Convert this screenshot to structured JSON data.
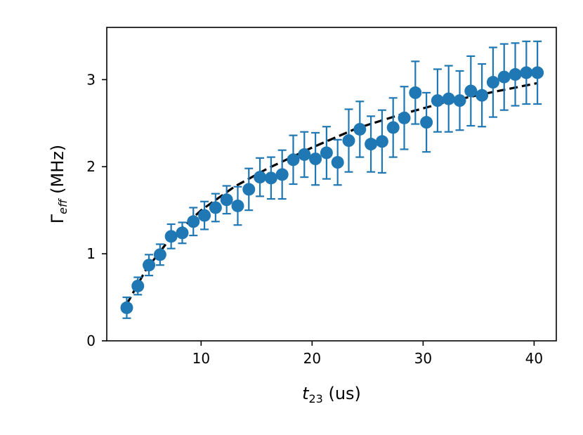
{
  "chart_data": {
    "type": "scatter",
    "xlabel": {
      "base": "t",
      "sub": "23",
      "rest": " (us)"
    },
    "ylabel": {
      "base": "Γ",
      "sub": "eff",
      "rest": " (MHz)"
    },
    "xlim": [
      1.5,
      42.0
    ],
    "ylim": [
      0,
      3.6
    ],
    "xticks": [
      10,
      20,
      30,
      40
    ],
    "yticks": [
      0,
      1,
      2,
      3
    ],
    "grid": false,
    "colors": {
      "points": "#1f77b4",
      "fit": "#000000"
    },
    "series": [
      {
        "x": [
          3.3,
          4.3,
          5.3,
          6.3,
          7.3,
          8.3,
          9.3,
          10.3,
          11.3,
          12.3,
          13.3,
          14.3,
          15.3,
          16.3,
          17.3,
          18.3,
          19.3,
          20.3,
          21.3,
          22.3,
          23.3,
          24.3,
          25.3,
          26.3,
          27.3,
          28.3,
          29.3,
          30.3,
          31.3,
          32.3,
          33.3,
          34.3,
          35.3,
          36.3,
          37.3,
          38.3,
          39.3,
          40.3
        ],
        "y": [
          0.38,
          0.63,
          0.87,
          0.99,
          1.2,
          1.24,
          1.37,
          1.44,
          1.53,
          1.62,
          1.55,
          1.74,
          1.88,
          1.87,
          1.91,
          2.08,
          2.14,
          2.09,
          2.16,
          2.05,
          2.3,
          2.43,
          2.26,
          2.29,
          2.45,
          2.56,
          2.85,
          2.51,
          2.76,
          2.78,
          2.76,
          2.87,
          2.82,
          2.97,
          3.03,
          3.06,
          3.08,
          3.08
        ],
        "yerr": [
          0.12,
          0.1,
          0.12,
          0.12,
          0.14,
          0.12,
          0.16,
          0.16,
          0.16,
          0.16,
          0.22,
          0.24,
          0.22,
          0.24,
          0.28,
          0.28,
          0.26,
          0.3,
          0.3,
          0.26,
          0.36,
          0.32,
          0.32,
          0.36,
          0.34,
          0.36,
          0.36,
          0.34,
          0.36,
          0.38,
          0.34,
          0.4,
          0.36,
          0.4,
          0.38,
          0.36,
          0.36,
          0.36
        ]
      }
    ],
    "fit_line": {
      "style": "dashed",
      "x": [
        3.3,
        5.0,
        7.0,
        10.0,
        13.0,
        16.0,
        20.0,
        24.0,
        28.0,
        32.0,
        36.0,
        40.3
      ],
      "y": [
        0.42,
        0.81,
        1.14,
        1.5,
        1.77,
        1.98,
        2.22,
        2.44,
        2.6,
        2.74,
        2.85,
        2.96
      ]
    }
  }
}
